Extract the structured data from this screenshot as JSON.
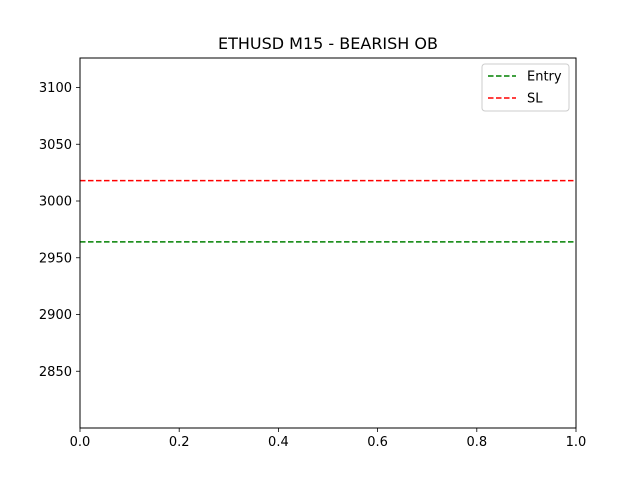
{
  "chart_data": {
    "type": "line",
    "title": "ETHUSD M15 - BEARISH OB",
    "xlabel": "",
    "ylabel": "",
    "xlim": [
      0.0,
      1.0
    ],
    "ylim": [
      2800,
      3126
    ],
    "x_ticks": [
      0.0,
      0.2,
      0.4,
      0.6,
      0.8,
      1.0
    ],
    "x_tick_labels": [
      "0.0",
      "0.2",
      "0.4",
      "0.6",
      "0.8",
      "1.0"
    ],
    "y_ticks": [
      2850,
      2900,
      2950,
      3000,
      3050,
      3100
    ],
    "y_tick_labels": [
      "2850",
      "2900",
      "2950",
      "3000",
      "3050",
      "3100"
    ],
    "grid": false,
    "legend_position": "top-right",
    "series": [
      {
        "name": "Entry",
        "style": "dashed",
        "color": "#008000",
        "y": 2964
      },
      {
        "name": "SL",
        "style": "dashed",
        "color": "#ff0000",
        "y": 3018
      }
    ]
  }
}
